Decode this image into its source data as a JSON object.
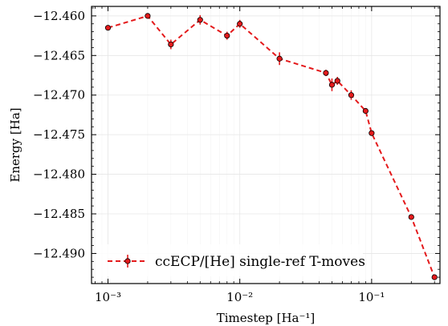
{
  "chart_data": {
    "type": "line",
    "xlabel": "Timestep [Ha⁻¹]",
    "ylabel": "Energy [Ha]",
    "xscale": "log",
    "xlim": [
      0.00075,
      0.33
    ],
    "ylim": [
      -12.4938,
      -12.4588
    ],
    "x_ticks": [
      {
        "value": 0.001,
        "label": "10⁻³"
      },
      {
        "value": 0.01,
        "label": "10⁻²"
      },
      {
        "value": 0.1,
        "label": "10⁻¹"
      }
    ],
    "y_ticks": [
      {
        "value": -12.46,
        "label": "−12.460"
      },
      {
        "value": -12.465,
        "label": "−12.465"
      },
      {
        "value": -12.47,
        "label": "−12.470"
      },
      {
        "value": -12.475,
        "label": "−12.475"
      },
      {
        "value": -12.48,
        "label": "−12.480"
      },
      {
        "value": -12.485,
        "label": "−12.485"
      },
      {
        "value": -12.49,
        "label": "−12.490"
      }
    ],
    "grid": true,
    "legend_position": "bottom-left",
    "series": [
      {
        "name": "ccECP/[He] single-ref T-moves",
        "color": "#e41a1c",
        "x": [
          0.001,
          0.002,
          0.003,
          0.005,
          0.008,
          0.01,
          0.02,
          0.045,
          0.05,
          0.055,
          0.07,
          0.09,
          0.1,
          0.2,
          0.3
        ],
        "y": [
          -12.4615,
          -12.46,
          -12.4636,
          -12.4605,
          -12.4625,
          -12.461,
          -12.4654,
          -12.4672,
          -12.4687,
          -12.4682,
          -12.47,
          -12.472,
          -12.4748,
          -12.4854,
          -12.493
        ],
        "yerr": [
          0.0002,
          0.0002,
          0.0006,
          0.0006,
          0.0005,
          0.0005,
          0.0008,
          0.0004,
          0.0008,
          0.0005,
          0.0006,
          0.0003,
          0.0003,
          0.0003,
          0.0002
        ]
      }
    ]
  }
}
